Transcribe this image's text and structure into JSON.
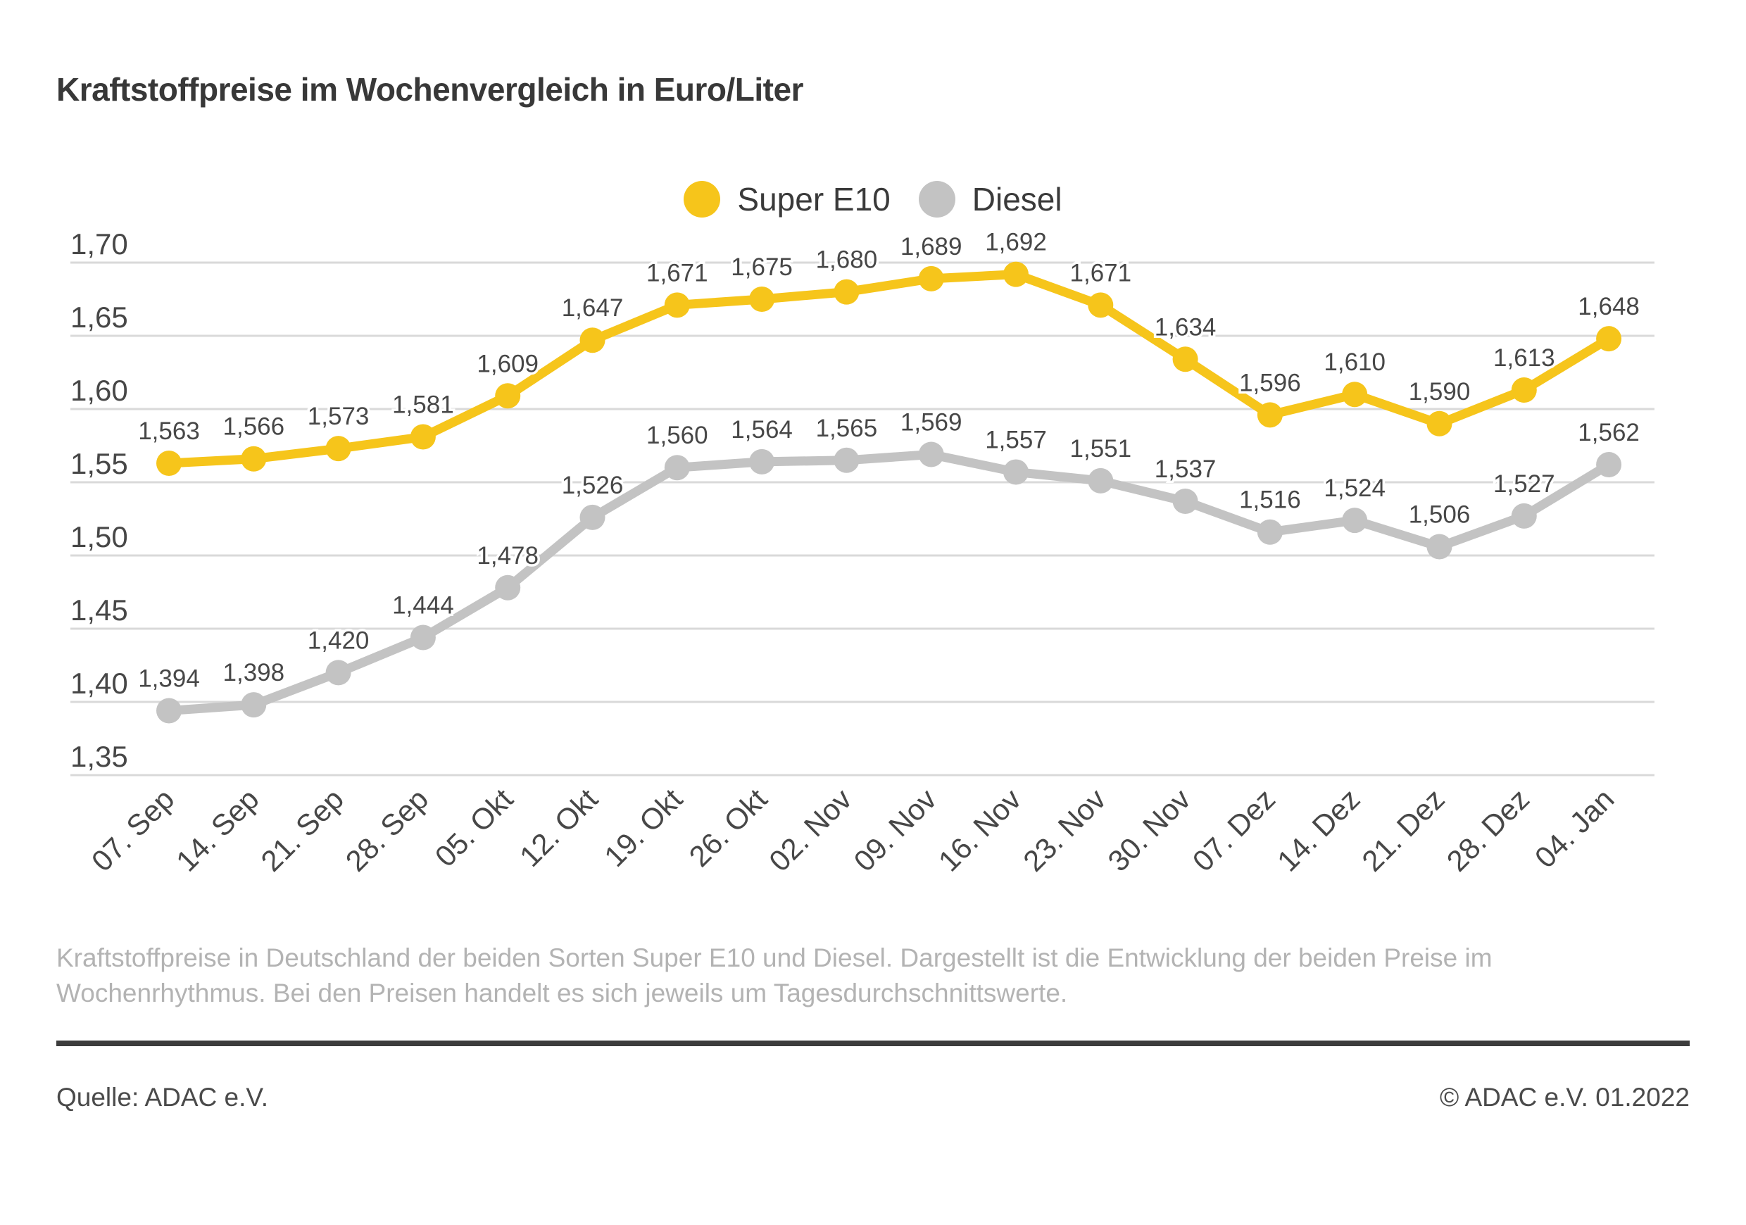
{
  "title": "Kraftstoffpreise im Wochenvergleich in Euro/Liter",
  "legend": [
    {
      "label": "Super E10",
      "color": "#F6C51B"
    },
    {
      "label": "Diesel",
      "color": "#C3C3C3"
    }
  ],
  "chart_data": {
    "type": "line",
    "title": "Kraftstoffpreise im Wochenvergleich in Euro/Liter",
    "xlabel": "",
    "ylabel": "Euro/Liter",
    "ylim": [
      1.35,
      1.7
    ],
    "ytick_step": 0.05,
    "grid": true,
    "legend_position": "top-center",
    "categories": [
      "07. Sep",
      "14. Sep",
      "21. Sep",
      "28. Sep",
      "05. Okt",
      "12. Okt",
      "19. Okt",
      "26. Okt",
      "02. Nov",
      "09. Nov",
      "16. Nov",
      "23. Nov",
      "30. Nov",
      "07. Dez",
      "14. Dez",
      "21. Dez",
      "28. Dez",
      "04. Jan"
    ],
    "yticks": [
      {
        "value": 1.7,
        "label": "1,70"
      },
      {
        "value": 1.65,
        "label": "1,65"
      },
      {
        "value": 1.6,
        "label": "1,60"
      },
      {
        "value": 1.55,
        "label": "1,55"
      },
      {
        "value": 1.5,
        "label": "1,50"
      },
      {
        "value": 1.45,
        "label": "1,45"
      },
      {
        "value": 1.4,
        "label": "1,40"
      },
      {
        "value": 1.35,
        "label": "1,35"
      }
    ],
    "series": [
      {
        "name": "Diesel",
        "color": "#C3C3C3",
        "values": [
          1.394,
          1.398,
          1.42,
          1.444,
          1.478,
          1.526,
          1.56,
          1.564,
          1.565,
          1.569,
          1.557,
          1.551,
          1.537,
          1.516,
          1.524,
          1.506,
          1.527,
          1.562
        ],
        "labels": [
          "1,394",
          "1,398",
          "1,420",
          "1,444",
          "1,478",
          "1,526",
          "1,560",
          "1,564",
          "1,565",
          "1,569",
          "1,557",
          "1,551",
          "1,537",
          "1,516",
          "1,524",
          "1,506",
          "1,527",
          "1,562"
        ]
      },
      {
        "name": "Super E10",
        "color": "#F6C51B",
        "values": [
          1.563,
          1.566,
          1.573,
          1.581,
          1.609,
          1.647,
          1.671,
          1.675,
          1.68,
          1.689,
          1.692,
          1.671,
          1.634,
          1.596,
          1.61,
          1.59,
          1.613,
          1.648
        ],
        "labels": [
          "1,563",
          "1,566",
          "1,573",
          "1,581",
          "1,609",
          "1,647",
          "1,671",
          "1,675",
          "1,680",
          "1,689",
          "1,692",
          "1,671",
          "1,634",
          "1,596",
          "1,610",
          "1,590",
          "1,613",
          "1,648"
        ]
      }
    ]
  },
  "description": {
    "line1": "Kraftstoffpreise in Deutschland der beiden Sorten Super E10 und Diesel. Dargestellt ist die Entwicklung der beiden Preise im",
    "line2": "Wochenrhythmus. Bei den Preisen handelt es sich jeweils um Tagesdurchschnittswerte."
  },
  "footer": {
    "source": "Quelle: ADAC e.V.",
    "copyright": "© ADAC e.V. 01.2022"
  }
}
